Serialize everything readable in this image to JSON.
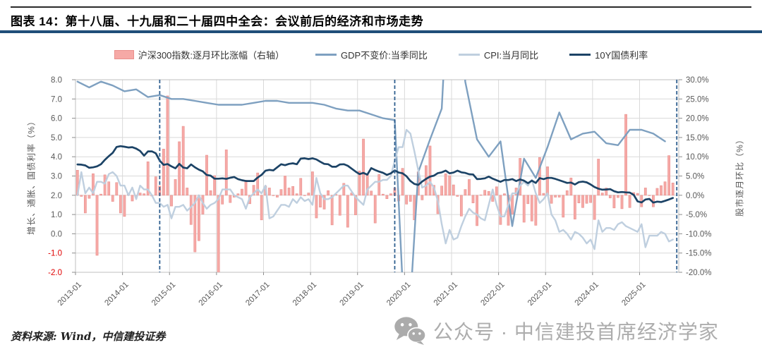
{
  "title": "图表 14：第十八届、十九届和二十届四中全会：会议前后的经济和市场走势",
  "source_note": "资料来源: Wind，中信建投证券",
  "watermark": {
    "icon": "wechat-icon",
    "text": "公众号 · 中信建投首席经济学家"
  },
  "legend": [
    {
      "label": "沪深300指数:逐月环比涨幅（右轴）",
      "type": "bar",
      "color": "#F6A9A6",
      "border": "#E9908D"
    },
    {
      "label": "GDP不变价:当季同比",
      "type": "line",
      "color": "#7EA0C0"
    },
    {
      "label": "CPI:当月同比",
      "type": "line",
      "color": "#BFCFDF"
    },
    {
      "label": "10Y国债利率",
      "type": "line",
      "color": "#1C4366"
    }
  ],
  "chart_data": {
    "type": "combo",
    "grid": "on",
    "legend_position": "top-center",
    "left_axis": {
      "title": "增长、通胀、国债利率（%）",
      "min": -2.0,
      "max": 8.0,
      "step": 1.0,
      "ticks": [
        "8.0",
        "7.0",
        "6.0",
        "5.0",
        "4.0",
        "3.0",
        "2.0",
        "1.0",
        "0.0",
        "-1.0",
        "-2.0"
      ],
      "negative_tick_color": "#E00000",
      "tick_color": "#595959"
    },
    "right_axis": {
      "title": "股市逐月环比（%）",
      "min": -20.0,
      "max": 30.0,
      "step": 5.0,
      "ticks": [
        "30.0%",
        "25.0%",
        "20.0%",
        "15.0%",
        "10.0%",
        "5.0%",
        "0.0%",
        "-5.0%",
        "-10.0%",
        "-15.0%",
        "-20.0%"
      ],
      "tick_color": "#595959"
    },
    "x_axis": {
      "start": "2013-01",
      "end": "2025-09",
      "tick_labels": [
        "2013-01",
        "2014-01",
        "2015-01",
        "2016-01",
        "2017-01",
        "2018-01",
        "2019-01",
        "2020-01",
        "2021-01",
        "2022-01",
        "2023-01",
        "2024-01",
        "2025-01"
      ],
      "tick_color": "#595959"
    },
    "event_lines": {
      "style": "dashed",
      "color": "#2F5F8F",
      "dates": [
        "2014-10",
        "2019-10",
        "2025-10"
      ]
    },
    "series": [
      {
        "name": "沪深300指数:逐月环比涨幅（右轴）",
        "type": "bar",
        "axis": "right",
        "freq": "monthly",
        "start": "2013-01",
        "color": "#F6A9A6",
        "border": "#E9908D",
        "values": [
          6.5,
          -0.3,
          -4.6,
          -0.8,
          5.6,
          -15.6,
          0.3,
          5.3,
          3.5,
          -1.6,
          3.3,
          -4.6,
          -5.5,
          0.3,
          -1.5,
          -0.3,
          0.6,
          0.4,
          8.7,
          -0.2,
          4.8,
          2.4,
          12.0,
          25.8,
          -2.8,
          4.1,
          13.9,
          17.9,
          1.9,
          -7.6,
          -14.7,
          -11.8,
          -4.9,
          10.4,
          1.2,
          5.1,
          -21.0,
          -2.3,
          11.8,
          -1.9,
          -0.5,
          0.4,
          1.6,
          3.9,
          -2.2,
          2.6,
          5.8,
          -6.4,
          2.4,
          1.9,
          -0.1,
          -0.5,
          1.5,
          5.0,
          1.9,
          2.3,
          0.4,
          4.4,
          0.0,
          0.6,
          6.1,
          -5.9,
          -3.1,
          -3.6,
          1.2,
          -7.7,
          0.2,
          -5.2,
          3.1,
          -8.3,
          0.6,
          -5.1,
          6.3,
          14.6,
          5.5,
          1.1,
          -7.2,
          5.4,
          0.3,
          -0.9,
          0.4,
          1.9,
          -1.5,
          7.0,
          -2.3,
          -1.6,
          -6.4,
          6.1,
          -1.2,
          7.7,
          12.8,
          2.6,
          -4.8,
          2.4,
          5.6,
          5.1,
          2.7,
          -0.3,
          -5.4,
          1.5,
          4.1,
          -2.0,
          -7.9,
          0.1,
          1.3,
          1.0,
          -1.6,
          2.2,
          -7.6,
          0.4,
          -7.8,
          -4.9,
          1.9,
          9.6,
          -7.0,
          -2.2,
          -6.7,
          -7.8,
          9.8,
          0.5,
          7.4,
          -2.1,
          -0.5,
          -0.5,
          -5.7,
          1.2,
          4.5,
          -6.2,
          -2.0,
          -3.2,
          -2.1,
          -1.9,
          -6.3,
          9.4,
          0.6,
          1.9,
          -0.7,
          -3.3,
          -0.6,
          -3.5,
          21.0,
          -3.2,
          0.7,
          0.5,
          -3.0,
          1.9,
          -0.1,
          -3.0,
          1.8,
          2.5,
          3.5,
          10.3,
          3.2
        ]
      },
      {
        "name": "GDP不变价:当季同比",
        "type": "line",
        "axis": "left",
        "freq": "quarterly",
        "start": "2013-01",
        "color": "#7EA0C0",
        "width": 2.4,
        "values": [
          7.9,
          7.6,
          7.9,
          7.7,
          7.4,
          7.5,
          7.1,
          7.2,
          7.0,
          7.0,
          6.9,
          6.8,
          6.7,
          6.7,
          6.7,
          6.8,
          6.9,
          6.9,
          6.8,
          6.8,
          6.8,
          6.7,
          6.5,
          6.4,
          6.4,
          6.2,
          6.0,
          5.9,
          -6.8,
          3.2,
          4.9,
          6.5,
          18.3,
          7.9,
          4.9,
          4.0,
          4.8,
          0.4,
          3.9,
          2.9,
          4.5,
          6.3,
          4.9,
          5.2,
          5.3,
          4.7,
          4.6,
          5.4,
          5.4,
          5.2,
          4.8
        ]
      },
      {
        "name": "CPI:当月同比",
        "type": "line",
        "axis": "left",
        "freq": "monthly",
        "start": "2013-01",
        "color": "#BFCFDF",
        "width": 2.4,
        "values": [
          2.0,
          3.2,
          2.1,
          2.4,
          2.1,
          2.7,
          2.7,
          2.6,
          3.1,
          3.2,
          3.0,
          2.5,
          2.5,
          2.0,
          2.4,
          1.8,
          2.5,
          2.3,
          2.3,
          2.0,
          1.6,
          1.6,
          1.4,
          1.5,
          0.8,
          1.4,
          1.4,
          1.5,
          1.2,
          1.4,
          1.6,
          2.0,
          1.6,
          1.3,
          1.5,
          1.6,
          1.8,
          2.3,
          2.3,
          2.3,
          2.0,
          1.9,
          1.8,
          1.3,
          1.9,
          2.1,
          2.3,
          2.1,
          2.5,
          0.8,
          0.9,
          1.2,
          1.5,
          1.5,
          1.4,
          1.8,
          1.6,
          1.9,
          1.7,
          1.8,
          1.5,
          2.9,
          2.1,
          1.8,
          1.8,
          1.9,
          2.1,
          2.3,
          2.5,
          2.5,
          2.2,
          1.9,
          1.7,
          1.5,
          2.3,
          2.5,
          2.7,
          2.7,
          2.8,
          2.8,
          3.0,
          3.8,
          4.5,
          4.5,
          5.4,
          5.2,
          4.3,
          3.3,
          2.4,
          2.5,
          2.7,
          2.4,
          1.7,
          0.5,
          -0.5,
          0.2,
          -0.3,
          -0.2,
          0.4,
          0.9,
          1.3,
          1.1,
          1.0,
          0.8,
          0.7,
          1.5,
          2.3,
          1.5,
          0.9,
          0.9,
          1.5,
          2.1,
          2.1,
          2.5,
          2.7,
          2.5,
          2.8,
          2.1,
          1.6,
          1.8,
          2.1,
          1.0,
          0.7,
          0.1,
          0.2,
          0.0,
          -0.3,
          0.1,
          0.0,
          -0.2,
          -0.5,
          -0.3,
          -0.8,
          0.7,
          0.1,
          0.3,
          0.3,
          0.2,
          0.5,
          0.6,
          0.4,
          0.3,
          0.2,
          0.1,
          0.5,
          -0.7,
          -0.1,
          -0.1,
          -0.1,
          0.1,
          0.0,
          -0.4,
          -0.3
        ]
      },
      {
        "name": "10Y国债利率",
        "type": "line",
        "axis": "left",
        "freq": "monthly",
        "start": "2013-01",
        "color": "#1C4366",
        "width": 2.7,
        "values": [
          3.6,
          3.59,
          3.55,
          3.43,
          3.45,
          3.5,
          3.61,
          3.84,
          4.03,
          4.2,
          4.51,
          4.55,
          4.52,
          4.48,
          4.5,
          4.42,
          4.3,
          4.06,
          4.28,
          4.28,
          4.18,
          3.8,
          3.58,
          3.62,
          3.5,
          3.4,
          3.63,
          3.44,
          3.4,
          3.6,
          3.45,
          3.33,
          3.24,
          3.05,
          3.02,
          2.86,
          2.86,
          2.88,
          2.85,
          2.91,
          2.95,
          2.84,
          2.78,
          2.74,
          2.74,
          2.74,
          2.92,
          3.06,
          3.28,
          3.32,
          3.29,
          3.45,
          3.61,
          3.56,
          3.63,
          3.66,
          3.61,
          3.9,
          3.92,
          3.88,
          3.92,
          3.86,
          3.74,
          3.63,
          3.61,
          3.48,
          3.48,
          3.6,
          3.61,
          3.53,
          3.38,
          3.23,
          3.1,
          3.16,
          3.07,
          3.41,
          3.31,
          3.23,
          3.17,
          3.06,
          3.14,
          3.29,
          3.18,
          3.14,
          2.99,
          2.74,
          2.59,
          2.54,
          2.71,
          2.85,
          2.97,
          3.02,
          3.15,
          3.19,
          3.28,
          3.14,
          3.18,
          3.28,
          3.19,
          3.16,
          3.09,
          3.08,
          2.84,
          2.85,
          2.88,
          2.97,
          2.86,
          2.78,
          2.7,
          2.79,
          2.79,
          2.84,
          2.74,
          2.82,
          2.76,
          2.63,
          2.76,
          2.64,
          2.89,
          2.84,
          2.9,
          2.9,
          2.85,
          2.78,
          2.71,
          2.64,
          2.66,
          2.56,
          2.68,
          2.71,
          2.67,
          2.56,
          2.43,
          2.34,
          2.29,
          2.3,
          2.32,
          2.21,
          2.15,
          2.17,
          2.15,
          2.14,
          2.02,
          1.68,
          1.63,
          1.78,
          1.81,
          1.62,
          1.67,
          1.65,
          1.71,
          1.78,
          1.86
        ]
      }
    ]
  }
}
